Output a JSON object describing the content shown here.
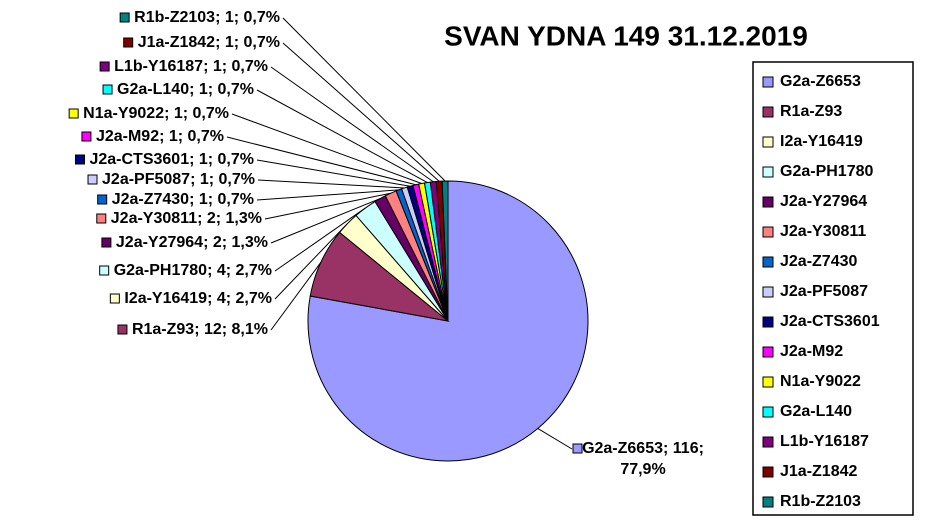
{
  "chart_data": {
    "type": "pie",
    "title": "SVAN YDNA 149   31.12.2019",
    "categories": [
      "G2a-Z6653",
      "R1a-Z93",
      "I2a-Y16419",
      "G2a-PH1780",
      "J2a-Y27964",
      "J2a-Y30811",
      "J2a-Z7430",
      "J2a-PF5087",
      "J2a-CTS3601",
      "J2a-M92",
      "N1a-Y9022",
      "G2a-L140",
      "L1b-Y16187",
      "J1a-Z1842",
      "R1b-Z2103"
    ],
    "values": [
      116,
      12,
      4,
      4,
      2,
      2,
      1,
      1,
      1,
      1,
      1,
      1,
      1,
      1,
      1
    ],
    "value_labels": [
      "G2a-Z6653; 116; 77,9%",
      "R1a-Z93; 12; 8,1%",
      "I2a-Y16419; 4; 2,7%",
      "G2a-PH1780; 4; 2,7%",
      "J2a-Y27964; 2; 1,3%",
      "J2a-Y30811; 2; 1,3%",
      "J2a-Z7430; 1; 0,7%",
      "J2a-PF5087; 1; 0,7%",
      "J2a-CTS3601; 1; 0,7%",
      "J2a-M92; 1; 0,7%",
      "N1a-Y9022; 1; 0,7%",
      "G2a-L140; 1; 0,7%",
      "L1b-Y16187; 1; 0,7%",
      "J1a-Z1842; 1; 0,7%",
      "R1b-Z2103; 1; 0,7%"
    ],
    "colors": [
      "#9999ff",
      "#993366",
      "#ffffcc",
      "#ccffff",
      "#660066",
      "#ff8080",
      "#0066cc",
      "#ccccff",
      "#000080",
      "#ff00ff",
      "#ffff00",
      "#00ffff",
      "#800080",
      "#800000",
      "#008080"
    ],
    "legend": "right"
  }
}
